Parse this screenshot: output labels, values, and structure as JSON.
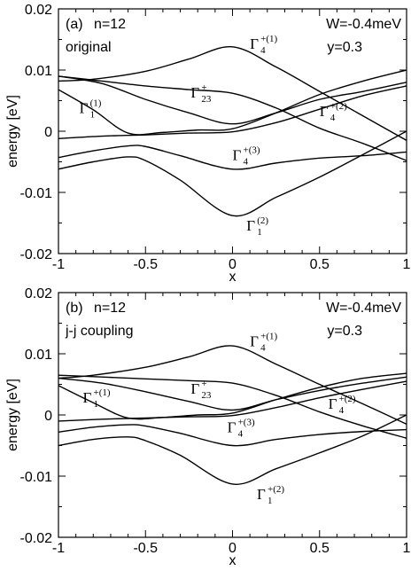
{
  "chart_data": [
    {
      "type": "line",
      "panel_label": "(a)",
      "annotations": [
        "n=12",
        "original",
        "W=-0.4meV",
        "y=0.3"
      ],
      "xlabel": "x",
      "ylabel": "energy [eV]",
      "xlim": [
        -1,
        1
      ],
      "ylim": [
        -0.02,
        0.02
      ],
      "xticks": [
        "-1",
        "-0.5",
        "0",
        "0.5",
        "1"
      ],
      "yticks": [
        "-0.02",
        "-0.01",
        "0",
        "0.01",
        "0.02"
      ],
      "series": [
        {
          "points": [
            [
              -1,
              0.0082
            ],
            [
              -0.8,
              0.0085
            ],
            [
              -0.5,
              0.0098
            ],
            [
              -0.25,
              0.0118
            ],
            [
              0,
              0.0138
            ],
            [
              0.25,
              0.0105
            ],
            [
              0.5,
              0.0065
            ],
            [
              0.75,
              0.0025
            ],
            [
              1,
              -0.0015
            ]
          ]
        },
        {
          "points": [
            [
              -1,
              0.009
            ],
            [
              -0.75,
              0.0082
            ],
            [
              -0.5,
              0.0074
            ],
            [
              -0.25,
              0.0068
            ],
            [
              0,
              0.0062
            ],
            [
              0.25,
              0.0038
            ],
            [
              0.5,
              0.0005
            ],
            [
              0.75,
              -0.002
            ],
            [
              1,
              -0.0048
            ]
          ]
        },
        {
          "points": [
            [
              -1,
              0.009
            ],
            [
              -0.75,
              0.0078
            ],
            [
              -0.5,
              0.0052
            ],
            [
              -0.25,
              0.003
            ],
            [
              0,
              0.0012
            ],
            [
              0.25,
              0.003
            ],
            [
              0.5,
              0.0052
            ],
            [
              0.75,
              0.0065
            ],
            [
              1,
              0.008
            ]
          ]
        },
        {
          "points": [
            [
              -1,
              0.0068
            ],
            [
              -0.8,
              0.0035
            ],
            [
              -0.6,
              -0.0003
            ],
            [
              -0.4,
              -0.0002
            ],
            [
              -0.2,
              0.0002
            ],
            [
              0,
              0.0004
            ],
            [
              0.25,
              0.003
            ],
            [
              0.5,
              0.006
            ],
            [
              0.75,
              0.0082
            ],
            [
              1,
              0.01
            ]
          ]
        },
        {
          "points": [
            [
              -1,
              -0.0012
            ],
            [
              -0.75,
              -0.0008
            ],
            [
              -0.5,
              -0.0006
            ],
            [
              -0.25,
              -0.0003
            ],
            [
              0,
              -0.0001
            ],
            [
              0.25,
              0.0014
            ],
            [
              0.5,
              0.0036
            ],
            [
              0.75,
              0.0058
            ],
            [
              1,
              0.0074
            ]
          ]
        },
        {
          "points": [
            [
              -1,
              -0.0043
            ],
            [
              -0.8,
              -0.0032
            ],
            [
              -0.6,
              -0.0024
            ],
            [
              -0.5,
              -0.0025
            ],
            [
              -0.3,
              -0.004
            ],
            [
              0,
              -0.0062
            ],
            [
              0.25,
              -0.0052
            ],
            [
              0.5,
              -0.0044
            ],
            [
              0.75,
              -0.004
            ],
            [
              1,
              -0.0034
            ]
          ]
        },
        {
          "points": [
            [
              -1,
              -0.0062
            ],
            [
              -0.8,
              -0.005
            ],
            [
              -0.6,
              -0.0042
            ],
            [
              -0.5,
              -0.0048
            ],
            [
              -0.3,
              -0.008
            ],
            [
              0,
              -0.0138
            ],
            [
              0.25,
              -0.0108
            ],
            [
              0.5,
              -0.0075
            ],
            [
              0.75,
              -0.0038
            ],
            [
              1,
              0.0
            ]
          ]
        }
      ],
      "labels": [
        {
          "main": "Γ",
          "sup": "+(1)",
          "sub": "4",
          "x": 0.1,
          "y": 0.0135
        },
        {
          "main": "Γ",
          "sup": "+",
          "sub": "23",
          "x": -0.24,
          "y": 0.0055
        },
        {
          "main": "Γ",
          "sup": "(1)",
          "sub": "1",
          "x": -0.88,
          "y": 0.003
        },
        {
          "main": "Γ",
          "sup": "+(2)",
          "sub": "4",
          "x": 0.5,
          "y": 0.0025
        },
        {
          "main": "Γ",
          "sup": "+(3)",
          "sub": "4",
          "x": 0.0,
          "y": -0.0047
        },
        {
          "main": "Γ",
          "sup": "(2)",
          "sub": "1",
          "x": 0.08,
          "y": -0.0162
        }
      ]
    },
    {
      "type": "line",
      "panel_label": "(b)",
      "annotations": [
        "n=12",
        "j-j coupling",
        "W=-0.4meV",
        "y=0.3"
      ],
      "xlabel": "x",
      "ylabel": "energy [eV]",
      "xlim": [
        -1,
        1
      ],
      "ylim": [
        -0.02,
        0.02
      ],
      "xticks": [
        "-1",
        "-0.5",
        "0",
        "0.5",
        "1"
      ],
      "yticks": [
        "-0.02",
        "-0.01",
        "0",
        "0.01",
        "0.02"
      ],
      "series": [
        {
          "points": [
            [
              -1,
              0.006
            ],
            [
              -0.8,
              0.0065
            ],
            [
              -0.5,
              0.0078
            ],
            [
              -0.25,
              0.0095
            ],
            [
              0,
              0.0113
            ],
            [
              0.25,
              0.0083
            ],
            [
              0.5,
              0.005
            ],
            [
              0.75,
              0.0018
            ],
            [
              1,
              -0.0015
            ]
          ]
        },
        {
          "points": [
            [
              -1,
              0.0065
            ],
            [
              -0.75,
              0.0062
            ],
            [
              -0.5,
              0.0059
            ],
            [
              -0.25,
              0.0056
            ],
            [
              0,
              0.0052
            ],
            [
              0.25,
              0.0032
            ],
            [
              0.5,
              0.0005
            ],
            [
              0.75,
              -0.0018
            ],
            [
              1,
              -0.0038
            ]
          ]
        },
        {
          "points": [
            [
              -1,
              0.006
            ],
            [
              -0.75,
              0.0052
            ],
            [
              -0.5,
              0.0038
            ],
            [
              -0.25,
              0.0022
            ],
            [
              0,
              0.0008
            ],
            [
              0.25,
              0.0025
            ],
            [
              0.5,
              0.004
            ],
            [
              0.75,
              0.0052
            ],
            [
              1,
              0.0062
            ]
          ]
        },
        {
          "points": [
            [
              -1,
              0.0048
            ],
            [
              -0.8,
              0.002
            ],
            [
              -0.6,
              -0.0005
            ],
            [
              -0.4,
              -0.0004
            ],
            [
              -0.2,
              0.0
            ],
            [
              0,
              0.0003
            ],
            [
              0.25,
              0.0025
            ],
            [
              0.5,
              0.0045
            ],
            [
              0.75,
              0.006
            ],
            [
              1,
              0.0068
            ]
          ]
        },
        {
          "points": [
            [
              -1,
              -0.001
            ],
            [
              -0.75,
              -0.0007
            ],
            [
              -0.5,
              -0.0005
            ],
            [
              -0.25,
              -0.0003
            ],
            [
              0,
              -0.0001
            ],
            [
              0.25,
              0.0012
            ],
            [
              0.5,
              0.0028
            ],
            [
              0.75,
              0.0042
            ],
            [
              1,
              0.0055
            ]
          ]
        },
        {
          "points": [
            [
              -1,
              -0.0028
            ],
            [
              -0.8,
              -0.002
            ],
            [
              -0.6,
              -0.0016
            ],
            [
              -0.5,
              -0.0018
            ],
            [
              -0.3,
              -0.003
            ],
            [
              0,
              -0.005
            ],
            [
              0.25,
              -0.004
            ],
            [
              0.5,
              -0.0032
            ],
            [
              0.75,
              -0.0027
            ],
            [
              1,
              -0.0024
            ]
          ]
        },
        {
          "points": [
            [
              -1,
              -0.005
            ],
            [
              -0.8,
              -0.004
            ],
            [
              -0.6,
              -0.0036
            ],
            [
              -0.5,
              -0.0042
            ],
            [
              -0.3,
              -0.0066
            ],
            [
              0,
              -0.0113
            ],
            [
              0.25,
              -0.0088
            ],
            [
              0.5,
              -0.0062
            ],
            [
              0.75,
              -0.0034
            ],
            [
              1,
              0.0
            ]
          ]
        }
      ],
      "labels": [
        {
          "main": "Γ",
          "sup": "+(1)",
          "sub": "4",
          "x": 0.1,
          "y": 0.0112
        },
        {
          "main": "Γ",
          "sup": "+",
          "sub": "23",
          "x": -0.24,
          "y": 0.0035
        },
        {
          "main": "Γ",
          "sup": "+(1)",
          "sub": "1",
          "x": -0.86,
          "y": 0.002
        },
        {
          "main": "Γ",
          "sup": "+(2)",
          "sub": "4",
          "x": 0.55,
          "y": 0.001
        },
        {
          "main": "Γ",
          "sup": "+(3)",
          "sub": "4",
          "x": -0.03,
          "y": -0.0028
        },
        {
          "main": "Γ",
          "sup": "+(2)",
          "sub": "1",
          "x": 0.14,
          "y": -0.0138
        }
      ]
    }
  ]
}
